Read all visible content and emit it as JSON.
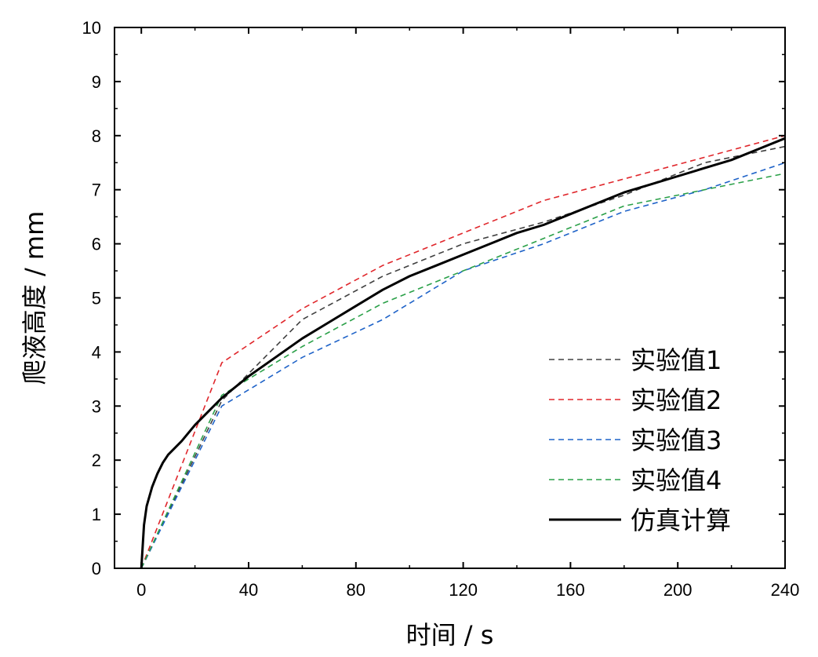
{
  "chart_data": {
    "type": "line",
    "xlabel": "时间 / s",
    "ylabel": "爬液高度 / mm",
    "xlim": [
      -10,
      240
    ],
    "ylim": [
      0,
      10
    ],
    "x_ticks": [
      "0",
      "40",
      "80",
      "120",
      "160",
      "200",
      "240"
    ],
    "y_ticks": [
      "0",
      "1",
      "2",
      "3",
      "4",
      "5",
      "6",
      "7",
      "8",
      "9",
      "10"
    ],
    "grid": false,
    "legend_position": "bottom-right",
    "series": [
      {
        "name": "实验值1",
        "color": "#404040",
        "dash": "dashed",
        "x": [
          0,
          30,
          60,
          90,
          120,
          150,
          180,
          210,
          240
        ],
        "y": [
          0,
          3.1,
          4.6,
          5.4,
          6.0,
          6.4,
          6.9,
          7.5,
          7.8
        ]
      },
      {
        "name": "实验值2",
        "color": "#e0262b",
        "dash": "dashed",
        "x": [
          0,
          30,
          60,
          90,
          120,
          150,
          180,
          210,
          240
        ],
        "y": [
          0,
          3.8,
          4.8,
          5.6,
          6.2,
          6.8,
          7.2,
          7.6,
          8.0
        ]
      },
      {
        "name": "实验值3",
        "color": "#1f63c8",
        "dash": "dashed",
        "x": [
          0,
          30,
          60,
          90,
          120,
          150,
          180,
          210,
          240
        ],
        "y": [
          0,
          3.0,
          3.9,
          4.6,
          5.5,
          6.0,
          6.6,
          7.0,
          7.5
        ]
      },
      {
        "name": "实验值4",
        "color": "#2aa048",
        "dash": "dashed",
        "x": [
          0,
          30,
          60,
          90,
          120,
          150,
          180,
          210,
          240
        ],
        "y": [
          0,
          3.2,
          4.1,
          4.9,
          5.5,
          6.1,
          6.7,
          7.0,
          7.3
        ]
      },
      {
        "name": "仿真计算",
        "color": "#000000",
        "dash": "solid",
        "x": [
          0,
          1,
          2,
          4,
          6,
          8,
          10,
          15,
          20,
          25,
          30,
          40,
          50,
          60,
          70,
          80,
          90,
          100,
          110,
          120,
          130,
          140,
          150,
          160,
          170,
          180,
          190,
          200,
          210,
          220,
          230,
          240
        ],
        "y": [
          0,
          0.8,
          1.15,
          1.5,
          1.75,
          1.95,
          2.1,
          2.35,
          2.65,
          2.9,
          3.15,
          3.55,
          3.9,
          4.25,
          4.55,
          4.85,
          5.15,
          5.4,
          5.6,
          5.8,
          6.0,
          6.2,
          6.35,
          6.55,
          6.75,
          6.95,
          7.1,
          7.25,
          7.4,
          7.55,
          7.75,
          7.95
        ]
      }
    ]
  }
}
